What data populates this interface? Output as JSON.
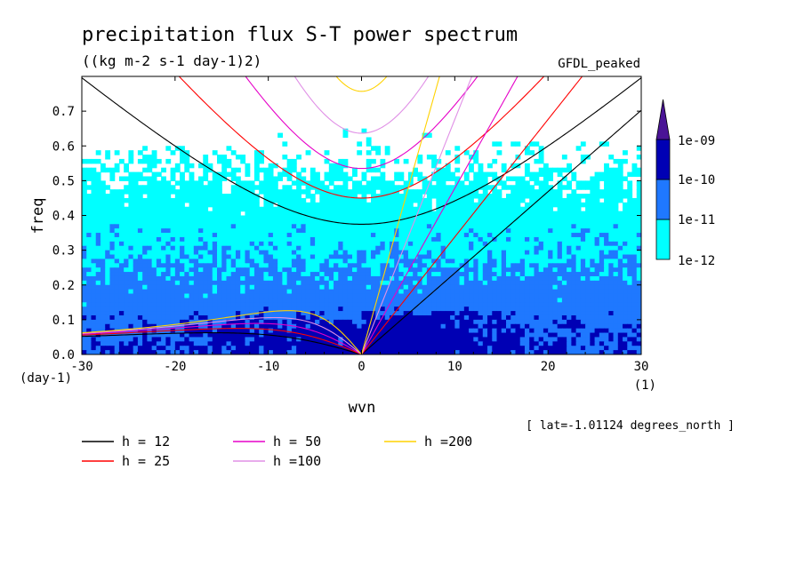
{
  "chart_data": {
    "type": "heatmap",
    "title": "precipitation flux S-T power spectrum",
    "units": "((kg m-2 s-1 day-1)2)",
    "dataset": "GFDL_peaked",
    "xlabel": "wvn",
    "ylabel": "freq",
    "x_unit": "(1)",
    "y_unit": "(day-1)",
    "annotation": "[ lat=-1.01124 degrees_north ]",
    "xlim": [
      -30,
      30
    ],
    "ylim": [
      0,
      0.8
    ],
    "x_ticks": [
      -30,
      -20,
      -10,
      0,
      10,
      20,
      30
    ],
    "x_tick_labels": [
      "-30",
      "-20",
      "-10",
      "0",
      "10",
      "20",
      "30"
    ],
    "y_ticks": [
      0,
      0.1,
      0.2,
      0.3,
      0.4,
      0.5,
      0.6,
      0.7
    ],
    "y_tick_labels": [
      "0.0",
      "0.1",
      "0.2",
      "0.3",
      "0.4",
      "0.5",
      "0.6",
      "0.7"
    ],
    "color_levels": [
      {
        "range": "< 1e-12",
        "color": "#ffffff"
      },
      {
        "range": "1e-12 to 1e-11",
        "color": "#00ffff"
      },
      {
        "range": "1e-11 to 1e-10",
        "color": "#1f78ff"
      },
      {
        "range": "1e-10 to 1e-09",
        "color": "#0000b4"
      },
      {
        "range": "> 1e-09",
        "color": "#4a1496"
      }
    ],
    "colorbar_labels": [
      "1e-09",
      "1e-10",
      "1e-11",
      "1e-12"
    ],
    "dispersion_curves": [
      {
        "label": "h = 12",
        "h": 12,
        "color": "#000000"
      },
      {
        "label": "h = 25",
        "h": 25,
        "color": "#ff0000"
      },
      {
        "label": "h = 50",
        "h": 50,
        "color": "#e600c8"
      },
      {
        "label": "h =100",
        "h": 100,
        "color": "#e090e6"
      },
      {
        "label": "h =200",
        "h": 200,
        "color": "#ffd200"
      }
    ]
  }
}
